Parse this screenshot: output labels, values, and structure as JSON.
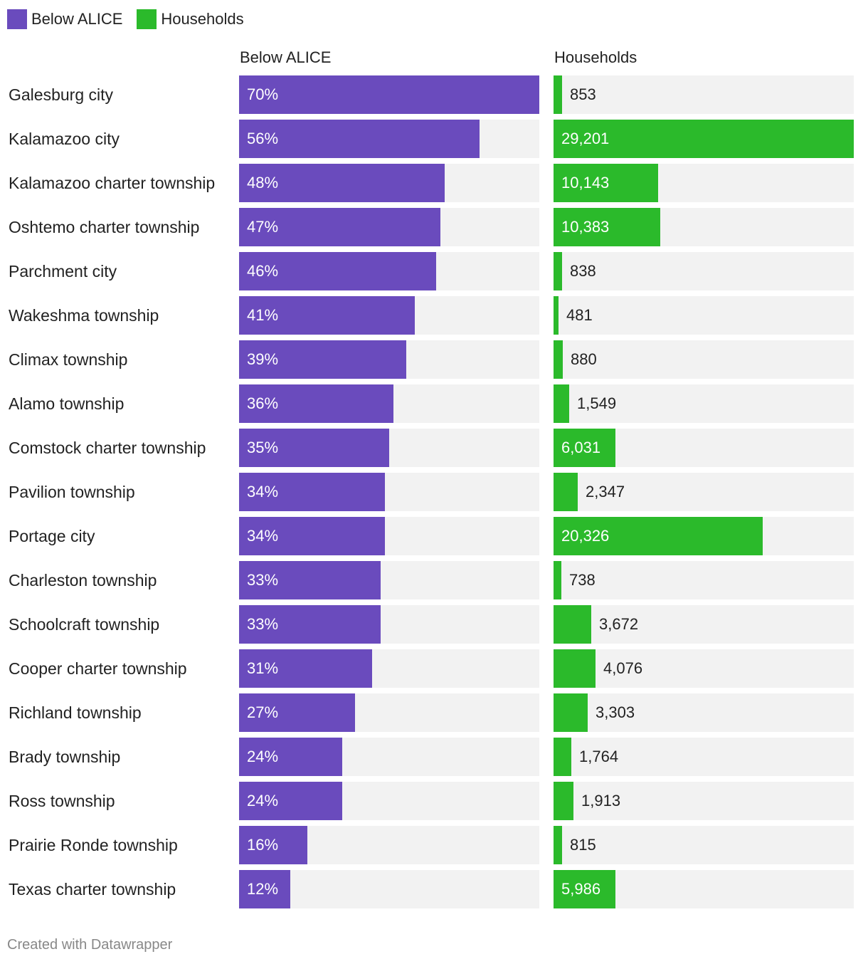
{
  "legend": {
    "items": [
      {
        "label": "Below ALICE",
        "color": "#6a4bbd"
      },
      {
        "label": "Households",
        "color": "#2bba2b"
      }
    ]
  },
  "columns": {
    "alice_header": "Below ALICE",
    "households_header": "Households"
  },
  "chart_data": {
    "type": "bar",
    "orientation": "horizontal",
    "categories": [
      "Galesburg city",
      "Kalamazoo city",
      "Kalamazoo charter township",
      "Oshtemo charter township",
      "Parchment city",
      "Wakeshma township",
      "Climax township",
      "Alamo township",
      "Comstock charter township",
      "Pavilion township",
      "Portage city",
      "Charleston township",
      "Schoolcraft township",
      "Cooper charter township",
      "Richland township",
      "Brady township",
      "Ross township",
      "Prairie Ronde township",
      "Texas charter township"
    ],
    "series": [
      {
        "name": "Below ALICE",
        "color": "#6a4bbd",
        "max": 70,
        "values": [
          70,
          56,
          48,
          47,
          46,
          41,
          39,
          36,
          35,
          34,
          34,
          33,
          33,
          31,
          27,
          24,
          24,
          16,
          12
        ],
        "labels": [
          "70%",
          "56%",
          "48%",
          "47%",
          "46%",
          "41%",
          "39%",
          "36%",
          "35%",
          "34%",
          "34%",
          "33%",
          "33%",
          "31%",
          "27%",
          "24%",
          "24%",
          "16%",
          "12%"
        ]
      },
      {
        "name": "Households",
        "color": "#2bba2b",
        "max": 29201,
        "values": [
          853,
          29201,
          10143,
          10383,
          838,
          481,
          880,
          1549,
          6031,
          2347,
          20326,
          738,
          3672,
          4076,
          3303,
          1764,
          1913,
          815,
          5986
        ],
        "labels": [
          "853",
          "29,201",
          "10,143",
          "10,383",
          "838",
          "481",
          "880",
          "1,549",
          "6,031",
          "2,347",
          "20,326",
          "738",
          "3,672",
          "4,076",
          "3,303",
          "1,764",
          "1,913",
          "815",
          "5,986"
        ]
      }
    ]
  },
  "footer": {
    "credit": "Created with Datawrapper"
  }
}
